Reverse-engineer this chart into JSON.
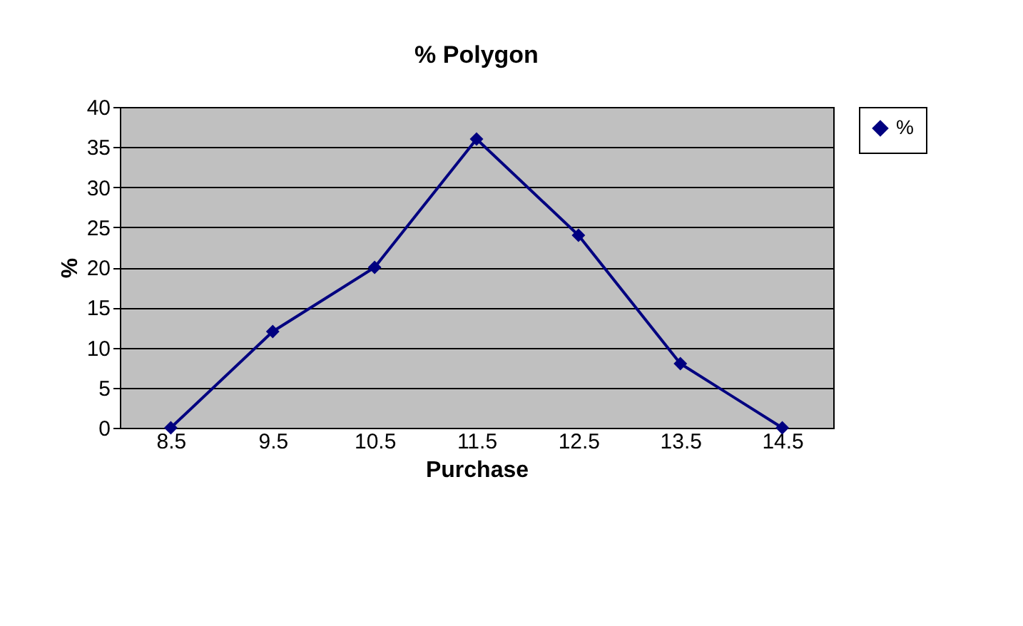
{
  "chart_data": {
    "type": "line",
    "title": "% Polygon",
    "xlabel": "Purchase",
    "ylabel": "%",
    "categories": [
      "8.5",
      "9.5",
      "10.5",
      "11.5",
      "12.5",
      "13.5",
      "14.5"
    ],
    "series": [
      {
        "name": "%",
        "color": "#000080",
        "values": [
          0,
          12,
          20,
          36,
          24,
          8,
          0
        ]
      }
    ],
    "ylim": [
      0,
      40
    ],
    "yticks": [
      0,
      5,
      10,
      15,
      20,
      25,
      30,
      35,
      40
    ],
    "grid": "y",
    "legend": "right",
    "marker": "diamond",
    "line_style": "solid"
  }
}
